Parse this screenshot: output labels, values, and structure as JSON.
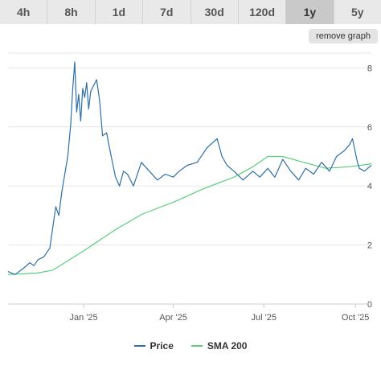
{
  "tabs": [
    {
      "label": "4h",
      "active": false
    },
    {
      "label": "8h",
      "active": false
    },
    {
      "label": "1d",
      "active": false
    },
    {
      "label": "7d",
      "active": false
    },
    {
      "label": "30d",
      "active": false
    },
    {
      "label": "120d",
      "active": false
    },
    {
      "label": "1y",
      "active": true
    },
    {
      "label": "5y",
      "active": false
    }
  ],
  "remove_graph_label": "remove graph",
  "colors": {
    "price": "#2f6fa7",
    "sma": "#5ccf7a",
    "grid": "#e6e6e6",
    "axis": "#cccccc"
  },
  "chart_data": {
    "type": "line",
    "title": "",
    "xlabel": "",
    "ylabel": "",
    "grid": true,
    "legend_placement": "bottom-center",
    "x_range": [
      "2024-10-17",
      "2025-10-17"
    ],
    "ylim": [
      0,
      8.5
    ],
    "y_ticks": [
      0,
      2,
      4,
      6,
      8
    ],
    "x_ticks": [
      {
        "date": "2025-01-01",
        "label": "Jan '25"
      },
      {
        "date": "2025-04-01",
        "label": "Apr '25"
      },
      {
        "date": "2025-07-01",
        "label": "Jul '25"
      },
      {
        "date": "2025-10-01",
        "label": "Oct '25"
      }
    ],
    "series": [
      {
        "name": "Price",
        "x": [
          "2024-10-17",
          "2024-10-24",
          "2024-11-01",
          "2024-11-08",
          "2024-11-12",
          "2024-11-16",
          "2024-11-22",
          "2024-11-28",
          "2024-12-01",
          "2024-12-04",
          "2024-12-07",
          "2024-12-10",
          "2024-12-13",
          "2024-12-16",
          "2024-12-19",
          "2024-12-21",
          "2024-12-23",
          "2024-12-25",
          "2024-12-27",
          "2024-12-29",
          "2024-12-31",
          "2025-01-02",
          "2025-01-04",
          "2025-01-06",
          "2025-01-08",
          "2025-01-11",
          "2025-01-14",
          "2025-01-17",
          "2025-01-20",
          "2025-01-24",
          "2025-01-28",
          "2025-02-02",
          "2025-02-06",
          "2025-02-10",
          "2025-02-14",
          "2025-02-20",
          "2025-02-28",
          "2025-03-08",
          "2025-03-16",
          "2025-03-24",
          "2025-04-01",
          "2025-04-07",
          "2025-04-15",
          "2025-04-25",
          "2025-05-05",
          "2025-05-15",
          "2025-05-20",
          "2025-05-25",
          "2025-06-01",
          "2025-06-10",
          "2025-06-20",
          "2025-06-27",
          "2025-07-05",
          "2025-07-12",
          "2025-07-20",
          "2025-07-28",
          "2025-08-05",
          "2025-08-12",
          "2025-08-20",
          "2025-08-28",
          "2025-09-05",
          "2025-09-12",
          "2025-09-20",
          "2025-09-25",
          "2025-09-28",
          "2025-10-03",
          "2025-10-05",
          "2025-10-10",
          "2025-10-17"
        ],
        "values": [
          1.1,
          1.0,
          1.2,
          1.4,
          1.3,
          1.5,
          1.6,
          1.9,
          2.6,
          3.3,
          3.0,
          3.8,
          4.4,
          5.0,
          6.1,
          7.3,
          8.2,
          6.5,
          7.1,
          6.2,
          7.3,
          7.0,
          7.5,
          6.6,
          7.2,
          7.4,
          7.6,
          6.9,
          5.7,
          5.8,
          5.1,
          4.3,
          4.0,
          4.5,
          4.4,
          4.0,
          4.8,
          4.5,
          4.2,
          4.4,
          4.3,
          4.5,
          4.7,
          4.8,
          5.3,
          5.6,
          5.0,
          4.7,
          4.5,
          4.2,
          4.5,
          4.3,
          4.6,
          4.3,
          4.9,
          4.5,
          4.2,
          4.6,
          4.4,
          4.8,
          4.5,
          5.0,
          5.2,
          5.4,
          5.6,
          4.8,
          4.6,
          4.5,
          4.7
        ]
      },
      {
        "name": "SMA 200",
        "x": [
          "2024-10-17",
          "2024-11-15",
          "2024-12-01",
          "2025-01-01",
          "2025-02-01",
          "2025-03-01",
          "2025-04-01",
          "2025-05-01",
          "2025-06-01",
          "2025-06-20",
          "2025-07-05",
          "2025-07-20",
          "2025-08-10",
          "2025-09-01",
          "2025-09-25",
          "2025-10-17"
        ],
        "values": [
          1.0,
          1.05,
          1.15,
          1.8,
          2.5,
          3.05,
          3.45,
          3.9,
          4.3,
          4.65,
          5.0,
          5.0,
          4.8,
          4.6,
          4.65,
          4.75
        ]
      }
    ]
  }
}
